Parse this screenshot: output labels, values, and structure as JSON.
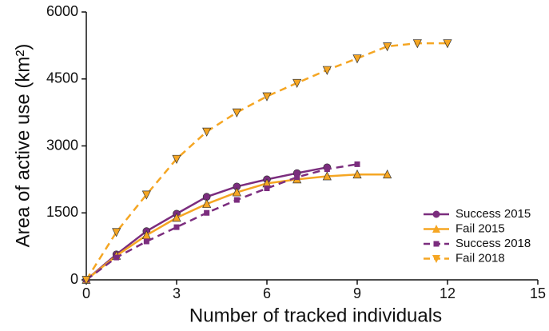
{
  "chart_data": {
    "type": "line",
    "xlabel": "Number of tracked individuals",
    "ylabel": "Area of active use (km²)",
    "xlim": [
      0,
      15
    ],
    "xticks": [
      0,
      3,
      6,
      9,
      12,
      15
    ],
    "ylim": [
      0,
      6000
    ],
    "yticks": [
      0,
      1500,
      3000,
      4500,
      6000
    ],
    "legend": "lower right",
    "series": [
      {
        "name": "Success 2015",
        "color": "#7b2d7e",
        "marker": "circle",
        "dash": false,
        "x": [
          0,
          1,
          2,
          3,
          4,
          5,
          6,
          7,
          8
        ],
        "values": [
          0,
          570,
          1090,
          1480,
          1860,
          2090,
          2250,
          2390,
          2520
        ]
      },
      {
        "name": "Fail 2015",
        "color": "#f5a623",
        "marker": "triangle-up",
        "dash": false,
        "x": [
          0,
          1,
          2,
          3,
          4,
          5,
          6,
          7,
          8,
          9,
          10
        ],
        "values": [
          0,
          540,
          1000,
          1390,
          1700,
          1960,
          2160,
          2250,
          2320,
          2360,
          2360
        ]
      },
      {
        "name": "Success 2018",
        "color": "#7b2d7e",
        "marker": "square",
        "dash": true,
        "x": [
          0,
          1,
          2,
          3,
          4,
          5,
          6,
          7,
          8,
          9
        ],
        "values": [
          0,
          500,
          860,
          1180,
          1500,
          1790,
          2050,
          2300,
          2480,
          2590
        ]
      },
      {
        "name": "Fail 2018",
        "color": "#f5a623",
        "marker": "triangle-down",
        "dash": true,
        "x": [
          0,
          1,
          2,
          3,
          4,
          5,
          6,
          7,
          8,
          9,
          10,
          11,
          12
        ],
        "values": [
          0,
          1070,
          1910,
          2710,
          3320,
          3750,
          4110,
          4410,
          4700,
          4960,
          5230,
          5300,
          5300
        ]
      }
    ]
  }
}
